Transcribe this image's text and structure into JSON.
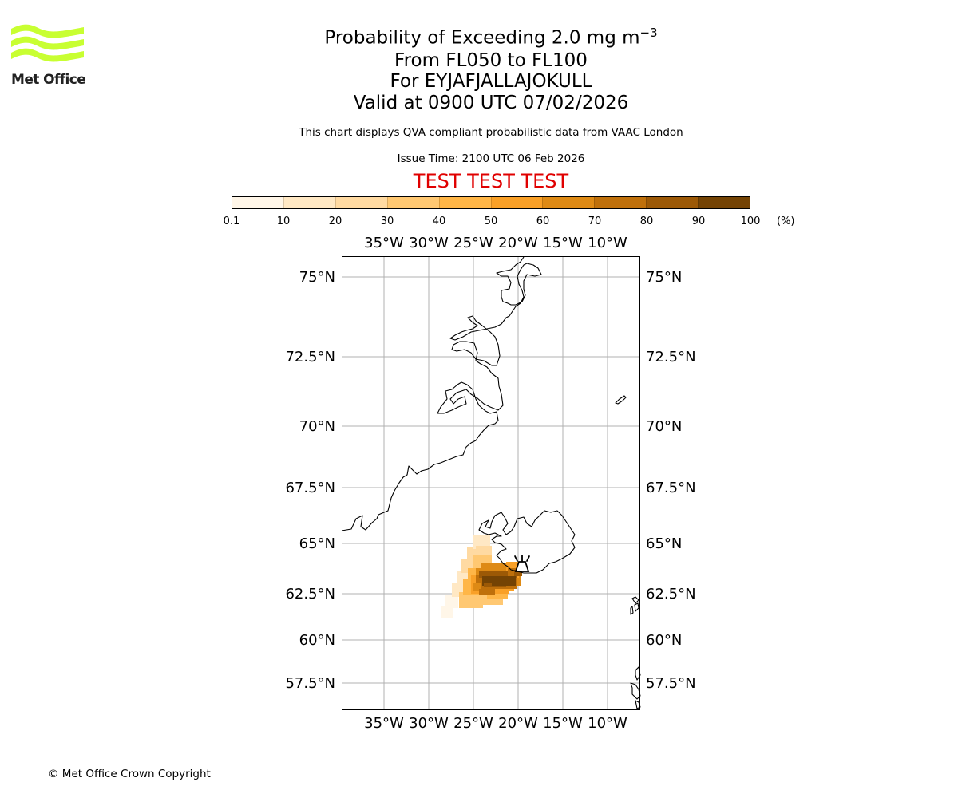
{
  "logo": {
    "text": "Met Office",
    "color": "#c8ff32"
  },
  "title": {
    "line1": "Probability of Exceeding 2.0 mg m",
    "line1_sup": "−3",
    "line2": "From FL050 to FL100",
    "line3": "For EYJAFJALLAJOKULL",
    "line4": "Valid at 0900 UTC 07/02/2026"
  },
  "info_line": "This chart displays QVA compliant probabilistic data from VAAC London",
  "issue_time": "Issue Time: 2100 UTC 06 Feb 2026",
  "test_banner": "TEST TEST TEST",
  "colorbar": {
    "labels": [
      "0.1",
      "10",
      "20",
      "30",
      "40",
      "50",
      "60",
      "70",
      "80",
      "90",
      "100"
    ],
    "colors": [
      "#fff6e8",
      "#ffe8c4",
      "#ffdaa2",
      "#ffc872",
      "#ffb647",
      "#f9a027",
      "#de8a15",
      "#bf700b",
      "#9c5906",
      "#744304"
    ],
    "unit": "(%)"
  },
  "map": {
    "lon_labels": [
      "35°W",
      "30°W",
      "25°W",
      "20°W",
      "15°W",
      "10°W"
    ],
    "lat_labels": [
      "75°N",
      "72.5°N",
      "70°N",
      "67.5°N",
      "65°N",
      "62.5°N",
      "60°N",
      "57.5°N"
    ],
    "volcano_name": "EYJAFJALLAJOKULL"
  },
  "copyright": "© Met Office Crown Copyright"
}
